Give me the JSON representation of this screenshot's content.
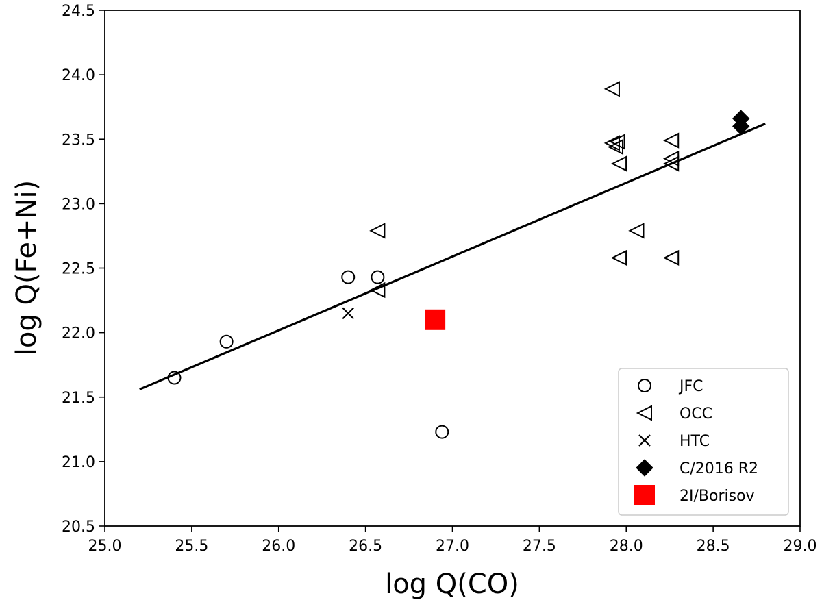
{
  "chart_data": {
    "type": "scatter",
    "title": "",
    "xlabel": "log Q(CO)",
    "ylabel": "log Q(Fe+Ni)",
    "xlim": [
      25.0,
      29.0
    ],
    "ylim": [
      20.5,
      24.5
    ],
    "xticks": [
      "25.0",
      "25.5",
      "26.0",
      "26.5",
      "27.0",
      "27.5",
      "28.0",
      "28.5",
      "29.0"
    ],
    "yticks": [
      "20.5",
      "21.0",
      "21.5",
      "22.0",
      "22.5",
      "23.0",
      "23.5",
      "24.0",
      "24.5"
    ],
    "grid": false,
    "legend_position": "lower-right",
    "fit_line": {
      "x": [
        25.2,
        28.8
      ],
      "y": [
        21.56,
        23.62
      ],
      "color": "#000000"
    },
    "series": [
      {
        "name": "JFC",
        "marker": "circle-open",
        "color": "#000000",
        "x": [
          25.4,
          25.7,
          26.4,
          26.57,
          26.94
        ],
        "y": [
          21.65,
          21.93,
          22.43,
          22.43,
          21.23
        ]
      },
      {
        "name": "OCC",
        "marker": "triangle-left-open",
        "color": "#000000",
        "x": [
          26.57,
          26.57,
          27.92,
          27.92,
          27.94,
          27.95,
          27.96,
          27.96,
          28.06,
          28.26,
          28.26,
          28.26,
          28.26
        ],
        "y": [
          22.79,
          22.33,
          23.89,
          23.47,
          23.44,
          23.48,
          23.31,
          22.58,
          22.79,
          23.49,
          23.35,
          23.31,
          22.58
        ]
      },
      {
        "name": "HTC",
        "marker": "x",
        "color": "#000000",
        "x": [
          26.4
        ],
        "y": [
          22.15
        ]
      },
      {
        "name": "C/2016 R2",
        "marker": "diamond-filled",
        "color": "#000000",
        "x": [
          28.66,
          28.66
        ],
        "y": [
          23.66,
          23.6
        ]
      },
      {
        "name": "2I/Borisov",
        "marker": "square-filled",
        "color": "#ff0000",
        "x": [
          26.9
        ],
        "y": [
          22.1
        ]
      }
    ]
  }
}
